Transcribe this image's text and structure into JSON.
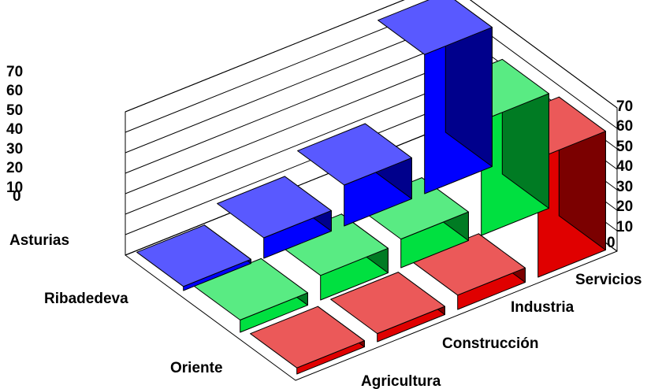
{
  "chart_data": {
    "type": "bar3d",
    "title": "",
    "series_axis": [
      "Asturias",
      "Ribadedeva",
      "Oriente"
    ],
    "categories": [
      "Agricultura",
      "Construcción",
      "Industria",
      "Servicios"
    ],
    "series": [
      {
        "name": "Asturias",
        "values": [
          2,
          10,
          20,
          68
        ],
        "color": "#0000ff"
      },
      {
        "name": "Ribadedeva",
        "values": [
          6,
          12,
          14,
          56
        ],
        "color": "#00e040"
      },
      {
        "name": "Oriente",
        "values": [
          3,
          4,
          7,
          58
        ],
        "color": "#e00000"
      }
    ],
    "y_ticks": [
      "0",
      "10",
      "20",
      "30",
      "40",
      "50",
      "60",
      "70"
    ],
    "ylim": [
      0,
      70
    ],
    "grid": true
  },
  "colors": {
    "blue": "#0000ff",
    "green": "#00e040",
    "red": "#e00000",
    "shadow": "#000000"
  }
}
